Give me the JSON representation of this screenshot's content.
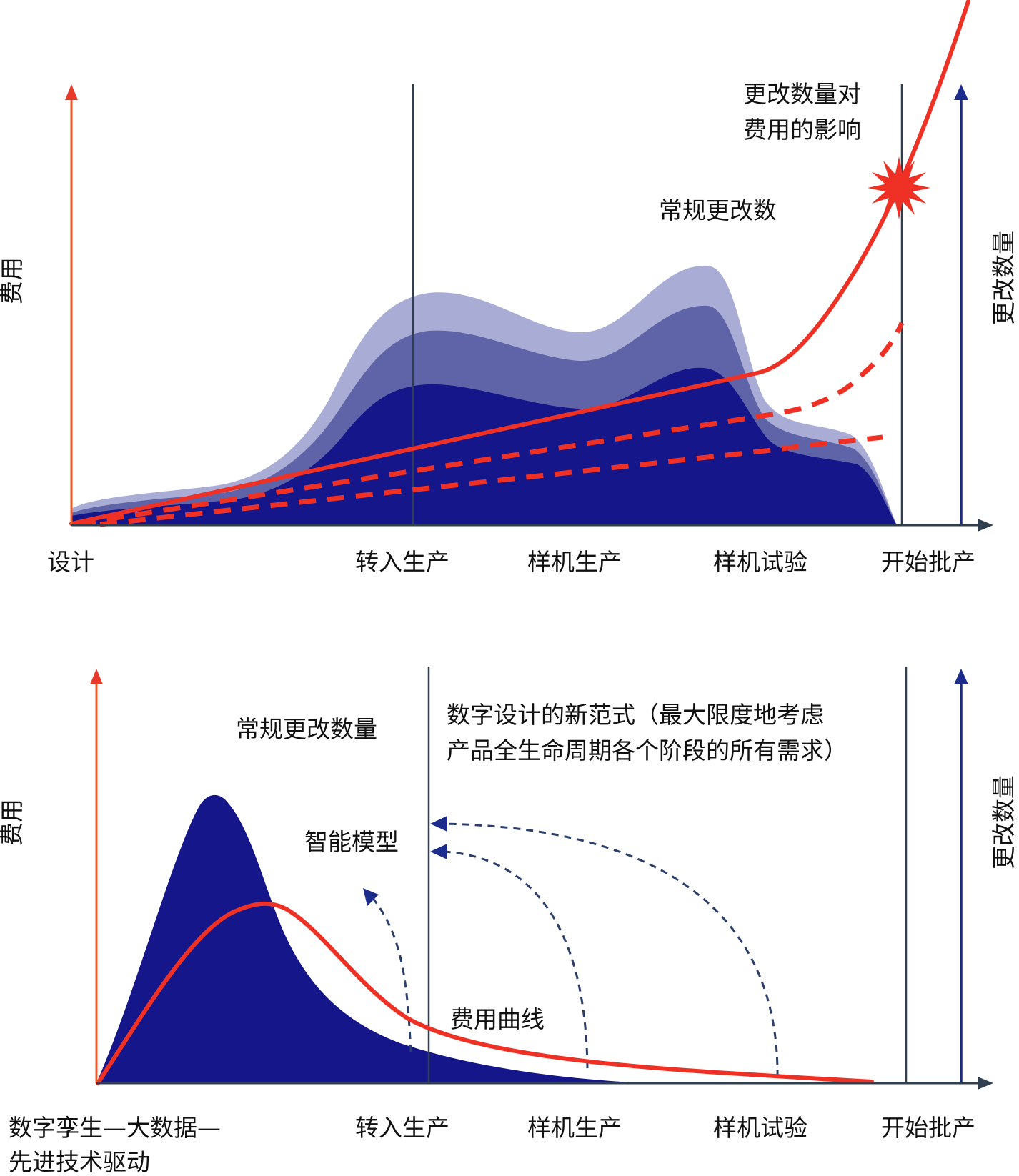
{
  "colors": {
    "red": "#ee3124",
    "navy": "#14168a",
    "mid_blue": "#5f64a8",
    "light_blue": "#a9acd4",
    "axis_left": "#e85a2a",
    "axis_right": "#1d2a7a",
    "divider": "#2f3f4f",
    "arrow_head_red": "#e8392b",
    "arrow_head_blue": "#1b2c8c"
  },
  "top": {
    "y_axis_left": "费用",
    "y_axis_right": "更改数量",
    "annotation_impact_line1": "更改数量对",
    "annotation_impact_line2": "费用的影响",
    "annotation_changes": "常规更改数",
    "x_labels": [
      "设计",
      "转入生产",
      "样机生产",
      "样机试验",
      "开始批产"
    ]
  },
  "bottom": {
    "y_axis_left": "费用",
    "y_axis_right": "更改数量",
    "annotation_changes": "常规更改数量",
    "annotation_paradigm_line1": "数字设计的新范式（最大限度地考虑",
    "annotation_paradigm_line2": "产品全生命周期各个阶段的所有需求）",
    "annotation_smart_model": "智能模型",
    "annotation_cost_curve": "费用曲线",
    "x_label_first_line1": "数字孪生—大数据—",
    "x_label_first_line2": "先进技术驱动",
    "x_labels": [
      "转入生产",
      "样机生产",
      "样机试验",
      "开始批产"
    ]
  }
}
